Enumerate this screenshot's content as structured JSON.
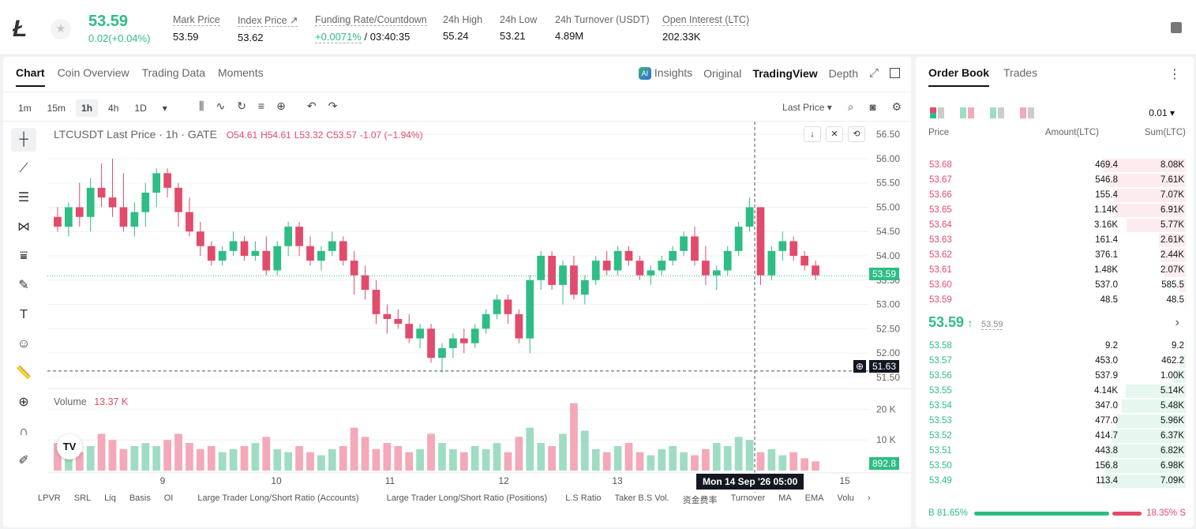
{
  "header": {
    "coin_symbol": "Ł",
    "last_price": "53.59",
    "change": "0.02(+0.04%)",
    "stats": [
      {
        "label": "Mark Price",
        "value": "53.59"
      },
      {
        "label": "Index Price ↗",
        "value": "53.62"
      },
      {
        "label": "Funding Rate/Countdown",
        "value_green": "+0.0071%",
        "value": " / 03:40:35"
      },
      {
        "label": "24h High",
        "value": "55.24"
      },
      {
        "label": "24h Low",
        "value": "53.21"
      },
      {
        "label": "24h Turnover (USDT)",
        "value": "4.89M"
      },
      {
        "label": "Open Interest (LTC)",
        "value": "202.33K"
      }
    ]
  },
  "chart_panel": {
    "tabs": [
      "Chart",
      "Coin Overview",
      "Trading Data",
      "Moments"
    ],
    "right_tabs": {
      "insights": "Insights",
      "original": "Original",
      "tradingview": "TradingView",
      "depth": "Depth"
    },
    "intervals": [
      "1m",
      "15m",
      "1h",
      "4h",
      "1D"
    ],
    "selected_interval": "1h",
    "price_type": "Last Price ▾",
    "legend": {
      "title": "LTCUSDT Last Price · 1h · GATE",
      "o": "O54.61",
      "h": "H54.61",
      "l": "L53.32",
      "c": "C53.57",
      "chg": "-1.07 (−1.94%)"
    },
    "volume_legend": {
      "label": "Volume",
      "value": "13.37 K"
    },
    "last_price_tag": "53.59",
    "cross_price_tag": "51.63",
    "volume_tag": "892.8",
    "date_tooltip": "Mon 14 Sep '26   05:00",
    "bottom_indicators": [
      "LPVR",
      "SRL",
      "Liq",
      "Basis",
      "OI",
      "Large Trader Long/Short Ratio (Accounts)",
      "Large Trader Long/Short Ratio (Positions)",
      "L.S Ratio",
      "Taker B.S Vol.",
      "资金费率",
      "Turnover",
      "MA",
      "EMA",
      "Volu"
    ]
  },
  "chart_data": {
    "type": "candlestick",
    "title": "LTCUSDT Last Price · 1h · GATE",
    "xlabel": "",
    "ylabel": "",
    "x_ticks": [
      "9",
      "10",
      "11",
      "12",
      "13",
      "15"
    ],
    "y_ticks": [
      "56.50",
      "56.00",
      "55.50",
      "55.00",
      "54.50",
      "54.00",
      "53.50",
      "53.00",
      "52.50",
      "52.00",
      "51.50"
    ],
    "volume_ticks": [
      "20 K",
      "10 K"
    ],
    "ylim": [
      51.4,
      56.6
    ],
    "volume_max": 25000,
    "candles": [
      [
        54.8,
        55.0,
        54.5,
        54.6
      ],
      [
        54.6,
        55.1,
        54.4,
        55.0
      ],
      [
        55.0,
        55.5,
        54.6,
        54.8
      ],
      [
        54.8,
        55.6,
        54.5,
        55.4
      ],
      [
        55.4,
        55.9,
        55.0,
        55.2
      ],
      [
        55.2,
        56.0,
        54.8,
        55.0
      ],
      [
        55.0,
        55.7,
        54.5,
        54.6
      ],
      [
        54.6,
        55.1,
        54.4,
        54.9
      ],
      [
        54.9,
        55.5,
        54.6,
        55.3
      ],
      [
        55.3,
        55.8,
        55.0,
        55.7
      ],
      [
        55.7,
        55.8,
        55.2,
        55.4
      ],
      [
        55.4,
        55.5,
        54.6,
        54.9
      ],
      [
        54.9,
        55.2,
        54.4,
        54.5
      ],
      [
        54.5,
        54.7,
        54.0,
        54.2
      ],
      [
        54.2,
        54.3,
        53.8,
        53.9
      ],
      [
        53.9,
        54.2,
        53.8,
        54.1
      ],
      [
        54.1,
        54.5,
        54.0,
        54.3
      ],
      [
        54.3,
        54.4,
        53.9,
        54.0
      ],
      [
        54.0,
        54.3,
        53.9,
        54.1
      ],
      [
        54.1,
        54.4,
        53.6,
        53.7
      ],
      [
        53.7,
        54.3,
        53.6,
        54.2
      ],
      [
        54.2,
        54.7,
        54.0,
        54.6
      ],
      [
        54.6,
        54.7,
        54.0,
        54.2
      ],
      [
        54.2,
        54.4,
        53.8,
        53.9
      ],
      [
        53.9,
        54.2,
        53.7,
        54.1
      ],
      [
        54.1,
        54.5,
        54.0,
        54.3
      ],
      [
        54.3,
        54.4,
        53.8,
        53.9
      ],
      [
        53.9,
        54.1,
        53.2,
        53.6
      ],
      [
        53.6,
        53.8,
        53.1,
        53.3
      ],
      [
        53.3,
        53.5,
        52.6,
        52.8
      ],
      [
        52.8,
        53.0,
        52.4,
        52.7
      ],
      [
        52.7,
        52.9,
        52.5,
        52.6
      ],
      [
        52.6,
        52.8,
        52.2,
        52.3
      ],
      [
        52.3,
        52.6,
        52.1,
        52.5
      ],
      [
        52.5,
        52.6,
        51.8,
        51.9
      ],
      [
        51.9,
        52.2,
        51.6,
        52.1
      ],
      [
        52.1,
        52.4,
        51.9,
        52.3
      ],
      [
        52.3,
        52.5,
        52.0,
        52.2
      ],
      [
        52.2,
        52.6,
        52.1,
        52.5
      ],
      [
        52.5,
        52.9,
        52.4,
        52.8
      ],
      [
        52.8,
        53.2,
        52.7,
        53.1
      ],
      [
        53.1,
        53.2,
        52.6,
        52.8
      ],
      [
        52.8,
        52.9,
        52.2,
        52.3
      ],
      [
        52.3,
        53.6,
        52.0,
        53.5
      ],
      [
        53.5,
        54.1,
        53.3,
        54.0
      ],
      [
        54.0,
        54.1,
        53.3,
        53.4
      ],
      [
        53.4,
        53.9,
        53.0,
        53.8
      ],
      [
        53.8,
        54.0,
        53.1,
        53.2
      ],
      [
        53.2,
        53.6,
        53.0,
        53.5
      ],
      [
        53.5,
        54.0,
        53.4,
        53.9
      ],
      [
        53.9,
        54.1,
        53.6,
        53.7
      ],
      [
        53.7,
        54.2,
        53.6,
        54.1
      ],
      [
        54.1,
        54.2,
        53.8,
        53.9
      ],
      [
        53.9,
        54.0,
        53.5,
        53.6
      ],
      [
        53.6,
        53.8,
        53.4,
        53.7
      ],
      [
        53.7,
        54.0,
        53.6,
        53.9
      ],
      [
        53.9,
        54.2,
        53.8,
        54.1
      ],
      [
        54.1,
        54.5,
        54.0,
        54.4
      ],
      [
        54.4,
        54.6,
        53.8,
        53.9
      ],
      [
        53.9,
        54.2,
        53.4,
        53.6
      ],
      [
        53.6,
        53.8,
        53.3,
        53.7
      ],
      [
        53.7,
        54.2,
        53.6,
        54.1
      ],
      [
        54.1,
        54.7,
        54.0,
        54.6
      ],
      [
        54.6,
        55.2,
        54.5,
        55.0
      ],
      [
        55.0,
        55.0,
        53.4,
        53.6
      ],
      [
        53.6,
        54.2,
        53.5,
        54.1
      ],
      [
        54.1,
        54.5,
        53.9,
        54.3
      ],
      [
        54.3,
        54.4,
        53.9,
        54.0
      ],
      [
        54.0,
        54.1,
        53.7,
        53.8
      ],
      [
        53.8,
        53.9,
        53.5,
        53.6
      ]
    ],
    "volumes": [
      9,
      7,
      6,
      8,
      12,
      10,
      7,
      8,
      9,
      8,
      10,
      12,
      9,
      7,
      8,
      6,
      7,
      8,
      9,
      11,
      7,
      6,
      8,
      6,
      5,
      7,
      8,
      14,
      11,
      7,
      9,
      8,
      6,
      7,
      12,
      9,
      7,
      6,
      8,
      7,
      9,
      6,
      11,
      14,
      9,
      8,
      12,
      22,
      13,
      7,
      6,
      8,
      9,
      6,
      5,
      7,
      8,
      6,
      5,
      7,
      9,
      8,
      11,
      10,
      6,
      7,
      5,
      6,
      4,
      3
    ]
  },
  "order_book": {
    "tabs": [
      "Order Book",
      "Trades"
    ],
    "precision": "0.01 ▾",
    "headers": {
      "price": "Price",
      "amount": "Amount(LTC)",
      "sum": "Sum(LTC)"
    },
    "asks": [
      {
        "price": "53.68",
        "amount": "469.4",
        "sum": "8.08K",
        "depth": 1.0
      },
      {
        "price": "53.67",
        "amount": "546.8",
        "sum": "7.61K",
        "depth": 0.94
      },
      {
        "price": "53.66",
        "amount": "155.4",
        "sum": "7.07K",
        "depth": 0.875
      },
      {
        "price": "53.65",
        "amount": "1.14K",
        "sum": "6.91K",
        "depth": 0.855
      },
      {
        "price": "53.64",
        "amount": "3.16K",
        "sum": "5.77K",
        "depth": 0.714
      },
      {
        "price": "53.63",
        "amount": "161.4",
        "sum": "2.61K",
        "depth": 0.323
      },
      {
        "price": "53.62",
        "amount": "376.1",
        "sum": "2.44K",
        "depth": 0.302
      },
      {
        "price": "53.61",
        "amount": "1.48K",
        "sum": "2.07K",
        "depth": 0.256
      },
      {
        "price": "53.60",
        "amount": "537.0",
        "sum": "585.5",
        "depth": 0.072
      },
      {
        "price": "53.59",
        "amount": "48.5",
        "sum": "48.5",
        "depth": 0.006
      }
    ],
    "mid": {
      "price": "53.59",
      "arrow": "↑",
      "mark": "53.59"
    },
    "bids": [
      {
        "price": "53.58",
        "amount": "9.2",
        "sum": "9.2",
        "depth": 0.001
      },
      {
        "price": "53.57",
        "amount": "453.0",
        "sum": "462.2",
        "depth": 0.065
      },
      {
        "price": "53.56",
        "amount": "537.9",
        "sum": "1.00K",
        "depth": 0.141
      },
      {
        "price": "53.55",
        "amount": "4.14K",
        "sum": "5.14K",
        "depth": 0.725
      },
      {
        "price": "53.54",
        "amount": "347.0",
        "sum": "5.48K",
        "depth": 0.773
      },
      {
        "price": "53.53",
        "amount": "477.0",
        "sum": "5.96K",
        "depth": 0.841
      },
      {
        "price": "53.52",
        "amount": "414.7",
        "sum": "6.37K",
        "depth": 0.898
      },
      {
        "price": "53.51",
        "amount": "443.8",
        "sum": "6.82K",
        "depth": 0.962
      },
      {
        "price": "53.50",
        "amount": "156.8",
        "sum": "6.98K",
        "depth": 0.984
      },
      {
        "price": "53.49",
        "amount": "113.4",
        "sum": "7.09K",
        "depth": 1.0
      }
    ],
    "ratio": {
      "buy": "B 81.65%",
      "sell": "18.35% S",
      "buy_frac": 0.8165
    }
  },
  "colors": {
    "up": "#2ebd85",
    "down": "#e24b6b",
    "up_vol": "#9fdcc4",
    "down_vol": "#f3a9b8"
  }
}
